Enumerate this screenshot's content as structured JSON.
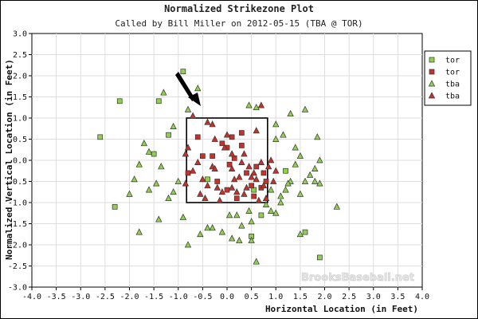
{
  "chart_data": {
    "type": "scatter",
    "title": "Normalized Strikezone Plot",
    "subtitle": "Called by Bill Miller on 2012-05-15 (TBA @ TOR)",
    "xlabel": "Horizontal Location (in Feet)",
    "ylabel": "Normalized Vertical Location (in Feet)",
    "xlim": [
      -4.0,
      4.0
    ],
    "ylim": [
      -3.0,
      3.0
    ],
    "xticks": [
      "-4.0",
      "-3.5",
      "-3.0",
      "-2.5",
      "-2.0",
      "-1.5",
      "-1.0",
      "-0.5",
      "0.0",
      "0.5",
      "1.0",
      "1.5",
      "2.0",
      "2.5",
      "3.0",
      "3.5",
      "4.0"
    ],
    "yticks": [
      "3.0",
      "2.5",
      "2.0",
      "1.5",
      "1.0",
      "0.5",
      "0.0",
      "-0.5",
      "-1.0",
      "-1.5",
      "-2.0",
      "-2.5",
      "-3.0"
    ],
    "strike_zone": {
      "x": [
        -0.83,
        0.83
      ],
      "y": [
        -1.0,
        1.0
      ]
    },
    "watermark": "BrooksBaseball.net",
    "legend_position": "top-right",
    "colors": {
      "green": "#8fd14f",
      "red": "#c8302a"
    },
    "series": [
      {
        "name": "tor",
        "marker": "square",
        "color": "#8fd14f",
        "points": [
          [
            -2.6,
            0.55
          ],
          [
            -2.2,
            1.4
          ],
          [
            -2.3,
            -1.1
          ],
          [
            -0.9,
            2.1
          ],
          [
            -1.4,
            1.4
          ],
          [
            -1.2,
            0.6
          ],
          [
            -0.4,
            -0.45
          ],
          [
            1.6,
            -1.7
          ],
          [
            1.9,
            -2.3
          ],
          [
            1.2,
            -0.25
          ],
          [
            0.5,
            -1.8
          ],
          [
            -1.5,
            0.15
          ],
          [
            0.55,
            -0.7
          ],
          [
            0.7,
            -1.3
          ]
        ]
      },
      {
        "name": "tor",
        "marker": "square",
        "color": "#c8302a",
        "points": [
          [
            -0.3,
            0.1
          ],
          [
            0.0,
            0.3
          ],
          [
            0.05,
            -0.1
          ],
          [
            0.1,
            0.55
          ],
          [
            0.3,
            0.65
          ],
          [
            -0.2,
            -0.5
          ],
          [
            0.4,
            -0.3
          ],
          [
            0.7,
            -0.65
          ],
          [
            0.75,
            -0.3
          ],
          [
            0.5,
            -0.6
          ],
          [
            -0.5,
            0.1
          ],
          [
            -0.8,
            -0.3
          ],
          [
            -0.1,
            0.4
          ],
          [
            0.3,
            0.35
          ],
          [
            0.0,
            -0.7
          ],
          [
            0.2,
            -0.9
          ],
          [
            -0.6,
            0.55
          ],
          [
            0.55,
            -0.85
          ],
          [
            0.15,
            0.05
          ],
          [
            0.6,
            -0.15
          ],
          [
            0.8,
            -0.5
          ]
        ]
      },
      {
        "name": "tba",
        "marker": "triangle",
        "color": "#8fd14f",
        "points": [
          [
            -0.6,
            1.7
          ],
          [
            -0.8,
            1.2
          ],
          [
            0.45,
            1.3
          ],
          [
            0.6,
            1.25
          ],
          [
            -1.3,
            1.6
          ],
          [
            -1.1,
            0.8
          ],
          [
            -1.7,
            0.4
          ],
          [
            -1.6,
            0.2
          ],
          [
            -1.0,
            -0.5
          ],
          [
            -1.6,
            -0.7
          ],
          [
            -1.8,
            -1.7
          ],
          [
            -1.4,
            -1.4
          ],
          [
            -1.1,
            -0.75
          ],
          [
            -1.35,
            -0.15
          ],
          [
            -1.45,
            -0.55
          ],
          [
            -1.8,
            -0.1
          ],
          [
            -1.9,
            -0.45
          ],
          [
            -2.0,
            -0.8
          ],
          [
            -0.55,
            -1.75
          ],
          [
            -0.3,
            -1.6
          ],
          [
            -0.1,
            -1.7
          ],
          [
            0.1,
            -1.85
          ],
          [
            0.3,
            -1.55
          ],
          [
            0.45,
            -1.2
          ],
          [
            0.5,
            -1.45
          ],
          [
            0.5,
            -1.9
          ],
          [
            0.6,
            -2.4
          ],
          [
            0.8,
            -1.05
          ],
          [
            0.9,
            -1.2
          ],
          [
            1.0,
            -1.25
          ],
          [
            1.1,
            -0.85
          ],
          [
            1.2,
            -0.7
          ],
          [
            1.3,
            -0.5
          ],
          [
            1.4,
            -0.1
          ],
          [
            1.4,
            0.3
          ],
          [
            1.5,
            -0.8
          ],
          [
            1.6,
            -0.5
          ],
          [
            1.7,
            -0.35
          ],
          [
            1.8,
            -0.2
          ],
          [
            1.8,
            -0.5
          ],
          [
            1.9,
            -0.55
          ],
          [
            1.85,
            0.55
          ],
          [
            1.9,
            0.0
          ],
          [
            1.6,
            1.2
          ],
          [
            1.0,
            0.5
          ],
          [
            1.15,
            0.6
          ],
          [
            1.0,
            0.85
          ],
          [
            1.3,
            1.1
          ],
          [
            1.5,
            -1.75
          ],
          [
            1.1,
            -1.0
          ],
          [
            2.25,
            -1.1
          ],
          [
            0.9,
            -0.7
          ],
          [
            -0.9,
            -1.35
          ],
          [
            -0.8,
            -2.0
          ],
          [
            0.2,
            -1.3
          ],
          [
            0.25,
            -1.9
          ],
          [
            1.25,
            -0.55
          ],
          [
            -0.4,
            -1.6
          ],
          [
            1.5,
            0.1
          ],
          [
            -1.2,
            -0.9
          ],
          [
            0.05,
            -1.3
          ]
        ]
      },
      {
        "name": "tba",
        "marker": "triangle",
        "color": "#c8302a",
        "points": [
          [
            -0.7,
            1.05
          ],
          [
            -0.4,
            0.9
          ],
          [
            -0.3,
            0.85
          ],
          [
            0.7,
            1.3
          ],
          [
            -0.8,
            0.3
          ],
          [
            -0.6,
            -0.05
          ],
          [
            -0.3,
            -0.15
          ],
          [
            0.1,
            -0.2
          ],
          [
            -0.5,
            -0.45
          ],
          [
            -0.4,
            -0.6
          ],
          [
            -0.2,
            -0.65
          ],
          [
            -0.1,
            -0.75
          ],
          [
            0.1,
            -0.65
          ],
          [
            0.25,
            -0.4
          ],
          [
            0.35,
            -0.8
          ],
          [
            -0.55,
            -0.8
          ],
          [
            -0.85,
            -0.55
          ],
          [
            -0.85,
            0.15
          ],
          [
            0.6,
            0.7
          ],
          [
            0.5,
            -0.4
          ],
          [
            -0.05,
            0.3
          ],
          [
            0.8,
            -0.9
          ],
          [
            0.15,
            -0.45
          ],
          [
            -0.25,
            0.5
          ],
          [
            0.35,
            0.15
          ],
          [
            0.7,
            -0.05
          ],
          [
            0.45,
            -0.15
          ],
          [
            0.55,
            -0.3
          ],
          [
            0.75,
            -0.6
          ],
          [
            0.9,
            0.0
          ],
          [
            1.0,
            -0.25
          ],
          [
            0.95,
            -0.5
          ],
          [
            0.6,
            -0.45
          ],
          [
            -0.15,
            -0.95
          ],
          [
            0.0,
            0.6
          ],
          [
            0.4,
            -0.65
          ],
          [
            -0.7,
            -0.25
          ],
          [
            -0.45,
            -0.9
          ],
          [
            0.3,
            -0.05
          ],
          [
            0.65,
            -0.95
          ],
          [
            0.1,
            0.15
          ],
          [
            -0.25,
            -0.2
          ],
          [
            0.2,
            -0.75
          ],
          [
            0.85,
            -0.15
          ]
        ]
      }
    ]
  },
  "legend": {
    "items": [
      {
        "label": "tor",
        "marker": "square",
        "color": "#8fd14f"
      },
      {
        "label": "tor",
        "marker": "square",
        "color": "#c8302a"
      },
      {
        "label": "tba",
        "marker": "triangle",
        "color": "#8fd14f"
      },
      {
        "label": "tba",
        "marker": "triangle",
        "color": "#c8302a"
      }
    ]
  }
}
